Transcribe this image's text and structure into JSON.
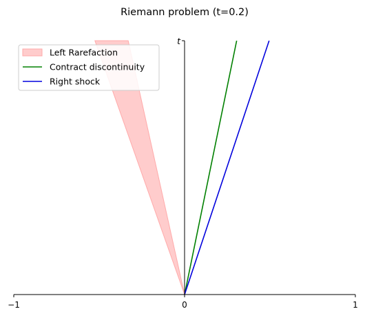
{
  "chart_data": {
    "type": "line",
    "title": "Riemann problem (t=0.2)",
    "xlabel": "",
    "ylabel": "t",
    "xlim": [
      -1,
      1
    ],
    "ylim": [
      0,
      1
    ],
    "x_ticks": [
      -1,
      0,
      1
    ],
    "x_tick_labels": [
      "−1",
      "0",
      "1"
    ],
    "y_ticks": [],
    "grid": false,
    "legend_position": "top-left",
    "rarefaction": {
      "name": "Left Rarefaction",
      "color": "#ffcccc",
      "edge_color": "#ffaaaa",
      "origin": [
        0,
        0
      ],
      "head_speed": -0.525,
      "tail_speed": -0.33,
      "t_max": 1.0
    },
    "series": [
      {
        "name": "Contract discontinuity",
        "color": "#008000",
        "x": [
          0,
          0.305
        ],
        "y": [
          0,
          1.0
        ]
      },
      {
        "name": "Right shock",
        "color": "#0000dd",
        "x": [
          0,
          0.495
        ],
        "y": [
          0,
          1.0
        ]
      }
    ]
  }
}
